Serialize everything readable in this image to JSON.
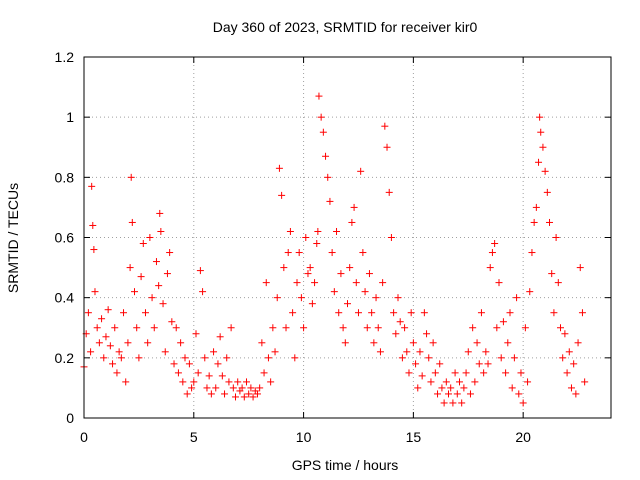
{
  "chart_data": {
    "type": "scatter",
    "title": "Day 360 of 2023, SRMTID for receiver kir0",
    "xlabel": "GPS time / hours",
    "ylabel": "SRMTID / TECUs",
    "xlim": [
      0,
      24
    ],
    "ylim": [
      0,
      1.2
    ],
    "xticks": [
      0,
      5,
      10,
      15,
      20
    ],
    "xtick_labels": [
      "0",
      "5",
      "10",
      "15",
      "20"
    ],
    "yticks": [
      0,
      0.2,
      0.4,
      0.6,
      0.8,
      1,
      1.2
    ],
    "ytick_labels": [
      "0",
      "0.2",
      "0.4",
      "0.6",
      "0.8",
      "1",
      "1.2"
    ],
    "grid": true,
    "marker": "+",
    "color": "#ff0000",
    "series": [
      {
        "name": "SRMTID",
        "x": [
          0.0,
          0.1,
          0.2,
          0.3,
          0.35,
          0.4,
          0.45,
          0.5,
          0.6,
          0.7,
          0.8,
          0.9,
          1.0,
          1.1,
          1.2,
          1.3,
          1.4,
          1.5,
          1.6,
          1.7,
          1.8,
          1.9,
          2.0,
          2.1,
          2.15,
          2.2,
          2.3,
          2.4,
          2.5,
          2.6,
          2.7,
          2.8,
          2.9,
          3.0,
          3.1,
          3.2,
          3.3,
          3.4,
          3.45,
          3.5,
          3.6,
          3.7,
          3.8,
          3.9,
          4.0,
          4.1,
          4.2,
          4.3,
          4.4,
          4.5,
          4.6,
          4.7,
          4.8,
          4.9,
          5.0,
          5.1,
          5.2,
          5.3,
          5.4,
          5.5,
          5.6,
          5.7,
          5.8,
          5.9,
          6.0,
          6.1,
          6.2,
          6.3,
          6.4,
          6.5,
          6.6,
          6.7,
          6.8,
          6.9,
          7.0,
          7.1,
          7.2,
          7.3,
          7.4,
          7.5,
          7.6,
          7.7,
          7.8,
          7.9,
          8.0,
          8.1,
          8.2,
          8.3,
          8.4,
          8.5,
          8.6,
          8.7,
          8.8,
          8.9,
          9.0,
          9.1,
          9.2,
          9.3,
          9.4,
          9.5,
          9.6,
          9.7,
          9.8,
          9.9,
          10.0,
          10.1,
          10.2,
          10.3,
          10.4,
          10.5,
          10.6,
          10.65,
          10.7,
          10.8,
          10.9,
          11.0,
          11.1,
          11.2,
          11.3,
          11.4,
          11.5,
          11.6,
          11.7,
          11.8,
          11.9,
          12.0,
          12.1,
          12.2,
          12.3,
          12.4,
          12.5,
          12.6,
          12.7,
          12.8,
          12.9,
          13.0,
          13.1,
          13.2,
          13.3,
          13.4,
          13.5,
          13.6,
          13.7,
          13.8,
          13.9,
          14.0,
          14.1,
          14.2,
          14.3,
          14.4,
          14.5,
          14.6,
          14.7,
          14.8,
          14.9,
          15.0,
          15.1,
          15.2,
          15.3,
          15.4,
          15.5,
          15.6,
          15.7,
          15.8,
          15.9,
          16.0,
          16.1,
          16.2,
          16.3,
          16.4,
          16.5,
          16.6,
          16.7,
          16.8,
          16.9,
          17.0,
          17.1,
          17.2,
          17.3,
          17.4,
          17.5,
          17.6,
          17.7,
          17.8,
          17.9,
          18.0,
          18.1,
          18.2,
          18.3,
          18.4,
          18.5,
          18.6,
          18.7,
          18.8,
          18.9,
          19.0,
          19.1,
          19.2,
          19.3,
          19.4,
          19.5,
          19.6,
          19.7,
          19.8,
          19.9,
          20.0,
          20.1,
          20.2,
          20.3,
          20.4,
          20.5,
          20.6,
          20.7,
          20.75,
          20.8,
          20.9,
          21.0,
          21.1,
          21.2,
          21.3,
          21.4,
          21.5,
          21.6,
          21.7,
          21.8,
          21.9,
          22.0,
          22.1,
          22.2,
          22.3,
          22.4,
          22.5,
          22.6,
          22.7,
          22.8
        ],
        "y": [
          0.17,
          0.28,
          0.35,
          0.22,
          0.77,
          0.64,
          0.56,
          0.42,
          0.3,
          0.25,
          0.33,
          0.2,
          0.27,
          0.36,
          0.24,
          0.18,
          0.3,
          0.15,
          0.22,
          0.2,
          0.35,
          0.12,
          0.25,
          0.5,
          0.8,
          0.65,
          0.42,
          0.3,
          0.2,
          0.47,
          0.58,
          0.35,
          0.25,
          0.6,
          0.4,
          0.3,
          0.52,
          0.44,
          0.68,
          0.62,
          0.38,
          0.22,
          0.48,
          0.55,
          0.32,
          0.18,
          0.3,
          0.15,
          0.25,
          0.12,
          0.2,
          0.08,
          0.18,
          0.1,
          0.12,
          0.28,
          0.15,
          0.49,
          0.42,
          0.2,
          0.1,
          0.14,
          0.08,
          0.22,
          0.1,
          0.18,
          0.27,
          0.14,
          0.08,
          0.2,
          0.12,
          0.3,
          0.1,
          0.07,
          0.12,
          0.09,
          0.1,
          0.07,
          0.12,
          0.08,
          0.1,
          0.07,
          0.09,
          0.08,
          0.1,
          0.25,
          0.15,
          0.45,
          0.2,
          0.12,
          0.3,
          0.22,
          0.4,
          0.83,
          0.74,
          0.5,
          0.3,
          0.55,
          0.62,
          0.35,
          0.2,
          0.45,
          0.55,
          0.4,
          0.3,
          0.6,
          0.48,
          0.5,
          0.38,
          0.45,
          0.58,
          0.62,
          1.07,
          1.0,
          0.95,
          0.87,
          0.8,
          0.72,
          0.55,
          0.42,
          0.62,
          0.35,
          0.48,
          0.3,
          0.25,
          0.38,
          0.5,
          0.65,
          0.7,
          0.45,
          0.35,
          0.82,
          0.55,
          0.42,
          0.3,
          0.48,
          0.35,
          0.25,
          0.4,
          0.3,
          0.22,
          0.45,
          0.97,
          0.9,
          0.75,
          0.6,
          0.35,
          0.28,
          0.4,
          0.32,
          0.2,
          0.3,
          0.22,
          0.15,
          0.35,
          0.25,
          0.18,
          0.1,
          0.22,
          0.14,
          0.35,
          0.28,
          0.2,
          0.12,
          0.25,
          0.15,
          0.08,
          0.18,
          0.1,
          0.05,
          0.12,
          0.08,
          0.1,
          0.05,
          0.15,
          0.08,
          0.12,
          0.05,
          0.1,
          0.15,
          0.22,
          0.08,
          0.3,
          0.12,
          0.25,
          0.18,
          0.35,
          0.15,
          0.22,
          0.18,
          0.5,
          0.55,
          0.58,
          0.3,
          0.45,
          0.2,
          0.32,
          0.15,
          0.25,
          0.35,
          0.1,
          0.2,
          0.4,
          0.08,
          0.15,
          0.05,
          0.3,
          0.12,
          0.42,
          0.55,
          0.65,
          0.7,
          0.85,
          1.0,
          0.95,
          0.9,
          0.82,
          0.75,
          0.65,
          0.48,
          0.35,
          0.6,
          0.45,
          0.3,
          0.2,
          0.28,
          0.15,
          0.22,
          0.1,
          0.18,
          0.08,
          0.25,
          0.5,
          0.35,
          0.12
        ]
      }
    ]
  }
}
